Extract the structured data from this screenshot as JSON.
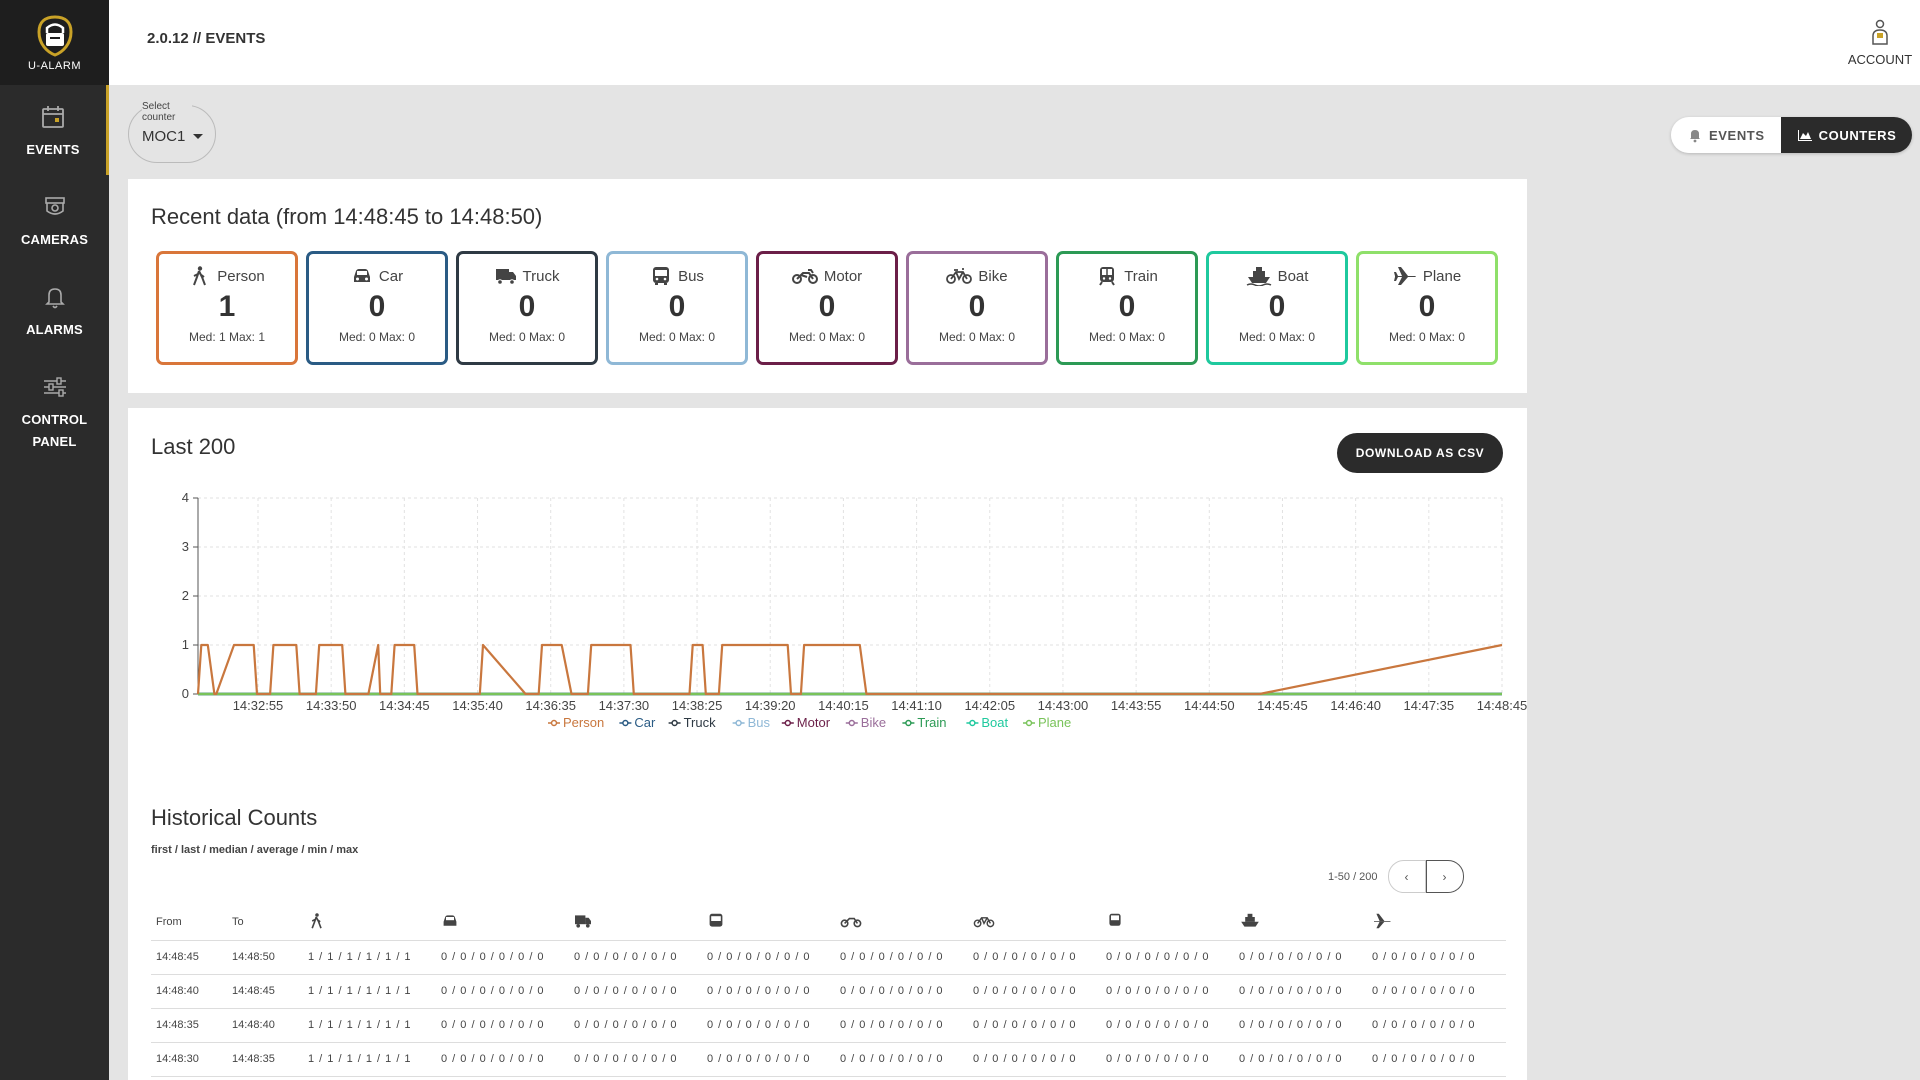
{
  "app": {
    "logo_text": "U-ALARM",
    "header_title": "2.0.12  // EVENTS"
  },
  "sidebar": {
    "items": [
      {
        "label": "EVENTS",
        "icon": "calendar-icon"
      },
      {
        "label": "CAMERAS",
        "icon": "camera-icon"
      },
      {
        "label": "ALARMS",
        "icon": "bell-icon"
      },
      {
        "label": "CONTROL PANEL",
        "label_line1": "CONTROL",
        "label_line2": "PANEL",
        "icon": "sliders-icon"
      }
    ]
  },
  "account": {
    "label": "ACCOUNT"
  },
  "counter_select": {
    "label": "Select counter",
    "value": "MOC1"
  },
  "toggle": {
    "events_label": "EVENTS",
    "counters_label": "COUNTERS"
  },
  "recent": {
    "title": "Recent data (from 14:48:45 to 14:48:50)",
    "classes": [
      {
        "name": "Person",
        "value": "1",
        "stats": "Med: 1   Max: 1",
        "color": "#d9763a"
      },
      {
        "name": "Car",
        "value": "0",
        "stats": "Med: 0   Max: 0",
        "color": "#2a5b84"
      },
      {
        "name": "Truck",
        "value": "0",
        "stats": "Med: 0   Max: 0",
        "color": "#2f3a44"
      },
      {
        "name": "Bus",
        "value": "0",
        "stats": "Med: 0   Max: 0",
        "color": "#8fb8d6"
      },
      {
        "name": "Motor",
        "value": "0",
        "stats": "Med: 0   Max: 0",
        "color": "#6b1f48"
      },
      {
        "name": "Bike",
        "value": "0",
        "stats": "Med: 0   Max: 0",
        "color": "#9a6e9a"
      },
      {
        "name": "Train",
        "value": "0",
        "stats": "Med: 0   Max: 0",
        "color": "#2c9a55"
      },
      {
        "name": "Boat",
        "value": "0",
        "stats": "Med: 0   Max: 0",
        "color": "#1fc99e"
      },
      {
        "name": "Plane",
        "value": "0",
        "stats": "Med: 0   Max: 0",
        "color": "#8fe06a"
      }
    ]
  },
  "last200": {
    "title": "Last 200",
    "download_label": "DOWNLOAD AS CSV"
  },
  "chart_data": {
    "type": "line",
    "title": "Last 200",
    "ylim": [
      0,
      4
    ],
    "y_ticks": [
      "0",
      "1",
      "2",
      "3",
      "4"
    ],
    "x_tick_labels": [
      "14:32:55",
      "14:33:50",
      "14:34:45",
      "14:35:40",
      "14:36:35",
      "14:37:30",
      "14:38:25",
      "14:39:20",
      "14:40:15",
      "14:41:10",
      "14:42:05",
      "14:43:00",
      "14:43:55",
      "14:44:50",
      "14:45:45",
      "14:46:40",
      "14:47:35",
      "14:48:45"
    ],
    "grid": true,
    "legend_position": "bottom",
    "series": [
      {
        "name": "Person",
        "color": "#c9773e",
        "x": [
          0,
          0.5,
          1.5,
          2.5,
          2.8,
          5.5,
          5.8,
          8.5,
          9,
          11,
          11.5,
          15,
          15.5,
          18,
          18.5,
          22,
          22.5,
          26,
          27.5,
          27.8,
          29.5,
          30,
          33,
          33.5,
          36.5,
          37,
          43,
          43.5,
          50,
          52,
          52.5,
          55.5,
          57,
          57.5,
          59.5,
          60,
          66,
          66.5,
          71,
          73,
          75,
          75.5,
          77,
          77.5,
          78,
          79,
          79.5,
          80,
          90,
          90.5,
          91,
          91.5,
          92,
          92.5,
          101,
          102,
          102.5,
          103.5,
          103.8,
          104.5,
          105,
          112,
          112.5,
          113.5,
          114,
          115,
          120,
          120.5,
          124,
          124.5,
          126,
          126.5,
          127.5,
          128.5,
          129,
          130,
          130.5,
          131,
          132,
          132.5,
          142,
          142.5,
          143,
          143.5,
          155,
          155.5,
          156,
          156.5,
          156.8,
          157.3,
          157.5,
          158,
          159.5,
          160,
          161,
          161.5,
          162,
          199
        ],
        "y": [
          0,
          1,
          1,
          0,
          0,
          1,
          1,
          1,
          0,
          0,
          1,
          1,
          0,
          0,
          1,
          1,
          0,
          0,
          1,
          0,
          0,
          1,
          1,
          0,
          0,
          0,
          0,
          1,
          0,
          0,
          1,
          1,
          0,
          0,
          0,
          1,
          1,
          0,
          0,
          0,
          0,
          1,
          1,
          0,
          0,
          0,
          0,
          1,
          1,
          0,
          0,
          0,
          0,
          1,
          1,
          0,
          0,
          0,
          0,
          0,
          0,
          0,
          0,
          0,
          0,
          0,
          0,
          0,
          0,
          0,
          0,
          0,
          0,
          0,
          0,
          0,
          0,
          0,
          0,
          0,
          0,
          0,
          0,
          0,
          0,
          0,
          0,
          0,
          0,
          0,
          0,
          0,
          0,
          0,
          0,
          0,
          0,
          1
        ]
      },
      {
        "name": "Car",
        "color": "#2a5b84",
        "constant": 0
      },
      {
        "name": "Truck",
        "color": "#2f3a44",
        "constant": 0
      },
      {
        "name": "Bus",
        "color": "#8fb8d6",
        "constant": 0
      },
      {
        "name": "Motor",
        "color": "#6b1f48",
        "constant": 0
      },
      {
        "name": "Bike",
        "color": "#9a6e9a",
        "constant": 0
      },
      {
        "name": "Train",
        "color": "#2c9a55",
        "constant": 0
      },
      {
        "name": "Boat",
        "color": "#1fc99e",
        "constant": 0
      },
      {
        "name": "Plane",
        "color": "#79c35a",
        "constant": 0
      }
    ]
  },
  "historical": {
    "title": "Historical Counts",
    "subtitle": "first / last / median / average / min / max",
    "pager_info": "1-50 / 200",
    "pager_prev": "‹",
    "pager_next": "›",
    "columns": {
      "from": "From",
      "to": "To"
    },
    "rows": [
      {
        "from": "14:48:45",
        "to": "14:48:50",
        "person": "1 / 1 / 1 / 1 / 1 / 1",
        "zero": "0 / 0 / 0 / 0 / 0 / 0"
      },
      {
        "from": "14:48:40",
        "to": "14:48:45",
        "person": "1 / 1 / 1 / 1 / 1 / 1",
        "zero": "0 / 0 / 0 / 0 / 0 / 0"
      },
      {
        "from": "14:48:35",
        "to": "14:48:40",
        "person": "1 / 1 / 1 / 1 / 1 / 1",
        "zero": "0 / 0 / 0 / 0 / 0 / 0"
      },
      {
        "from": "14:48:30",
        "to": "14:48:35",
        "person": "1 / 1 / 1 / 1 / 1 / 1",
        "zero": "0 / 0 / 0 / 0 / 0 / 0"
      }
    ]
  }
}
